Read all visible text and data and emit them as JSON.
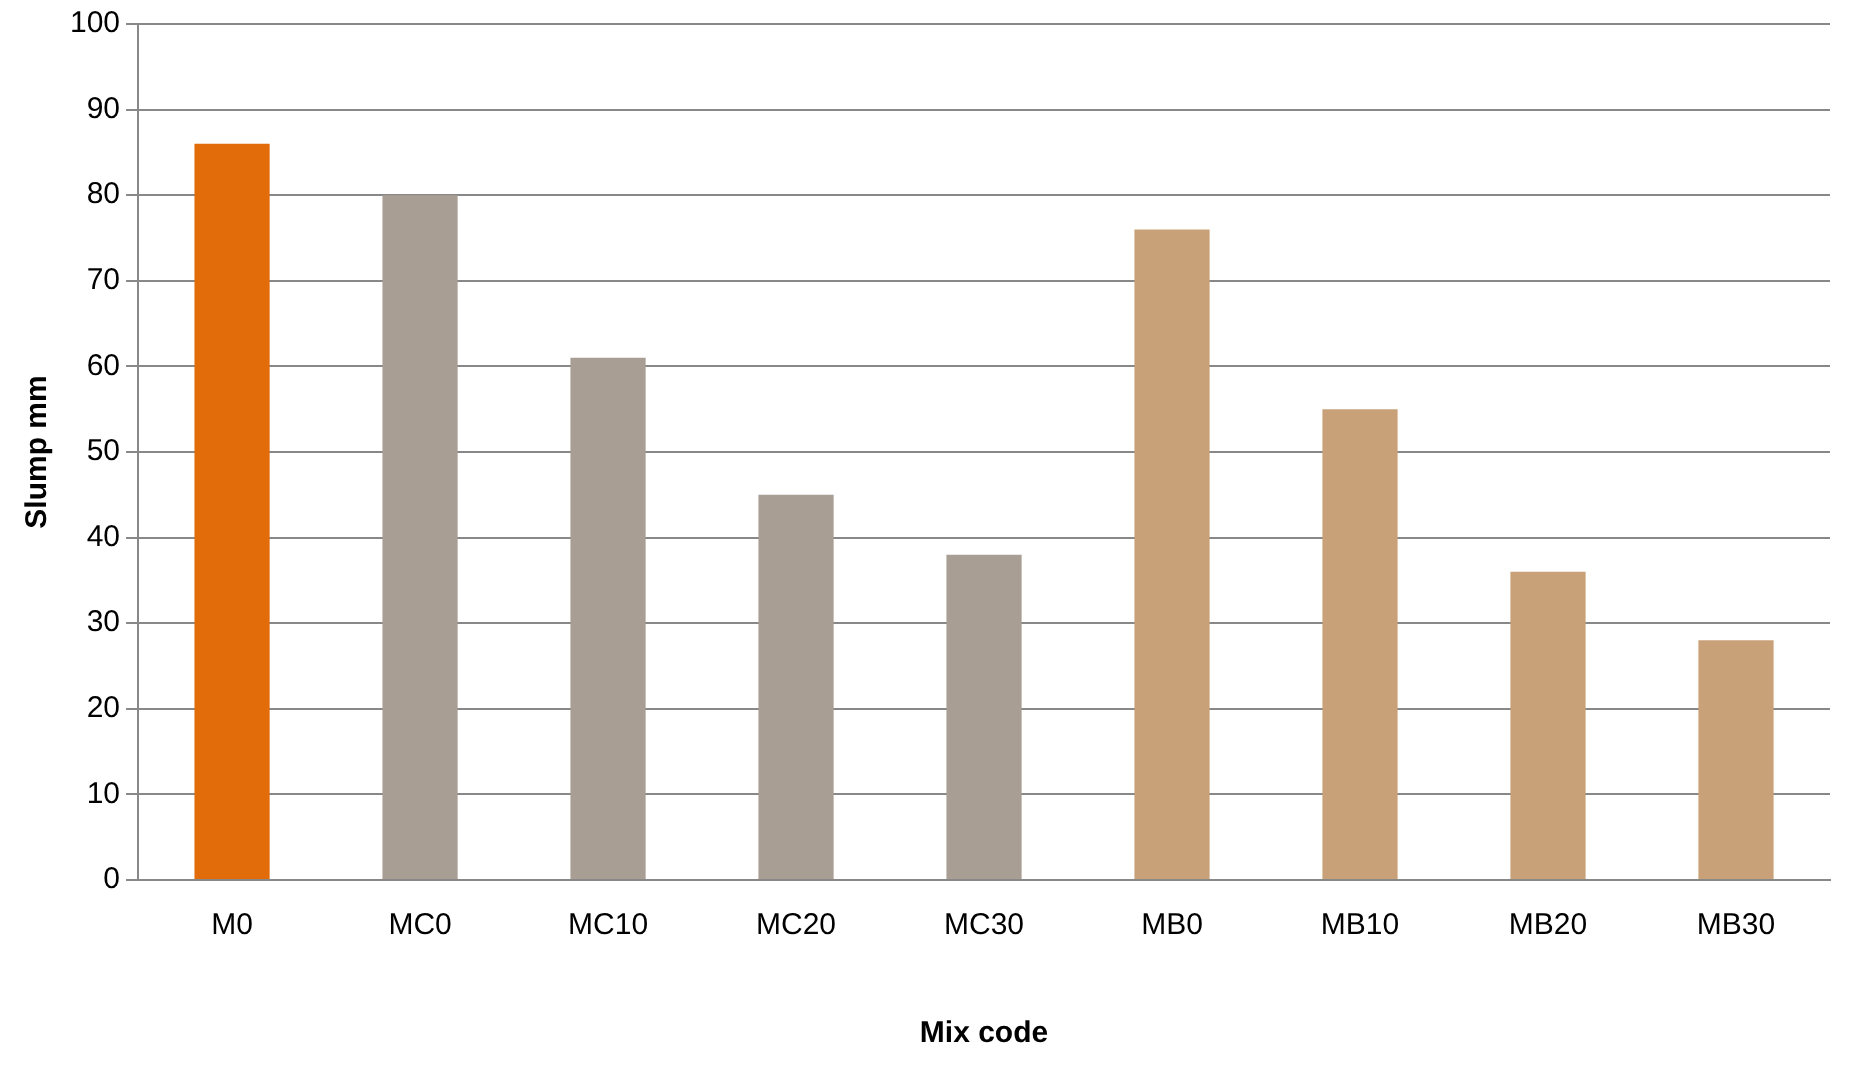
{
  "chart_data": {
    "type": "bar",
    "xlabel": "Mix code",
    "ylabel": "Slump mm",
    "categories": [
      "M0",
      "MC0",
      "MC10",
      "MC20",
      "MC30",
      "MB0",
      "MB10",
      "MB20",
      "MB30"
    ],
    "values": [
      86,
      80,
      61,
      45,
      38,
      76,
      55,
      36,
      28
    ],
    "colors": [
      "#e36c0a",
      "#a89e93",
      "#a89e93",
      "#a89e93",
      "#a89e93",
      "#c9a178",
      "#c9a178",
      "#c9a178",
      "#c9a178"
    ],
    "ylim": [
      0,
      100
    ],
    "yticks": [
      0,
      10,
      20,
      30,
      40,
      50,
      60,
      70,
      80,
      90,
      100
    ],
    "grid": "y",
    "legend": false
  }
}
